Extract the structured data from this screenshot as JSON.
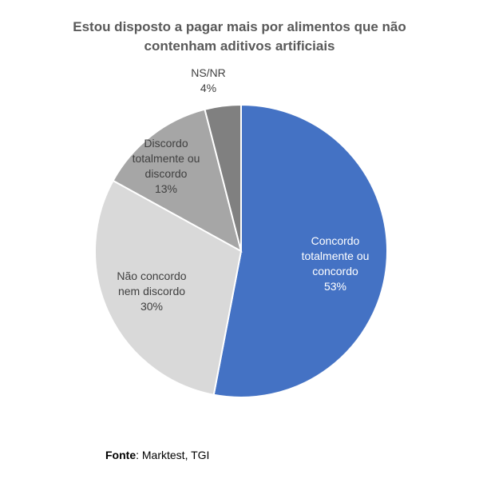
{
  "chart_data": {
    "type": "pie",
    "title_lines": [
      "Estou disposto a pagar mais por alimentos que não",
      "contenham aditivos artificiais"
    ],
    "slices": [
      {
        "label_lines": [
          "Concordo",
          "totalmente ou",
          "concordo"
        ],
        "value": 53,
        "value_label": "53%",
        "color": "#4472C4",
        "text_color": "#ffffff"
      },
      {
        "label_lines": [
          "Não concordo",
          "nem discordo"
        ],
        "value": 30,
        "value_label": "30%",
        "color": "#D9D9D9",
        "text_color": "#404040"
      },
      {
        "label_lines": [
          "Discordo",
          "totalmente ou",
          "discordo"
        ],
        "value": 13,
        "value_label": "13%",
        "color": "#A6A6A6",
        "text_color": "#404040"
      },
      {
        "label_lines": [
          "NS/NR"
        ],
        "value": 4,
        "value_label": "4%",
        "color": "#808080",
        "text_color": "#404040"
      }
    ]
  },
  "source": {
    "label": "Fonte",
    "text": ": Marktest, TGI"
  }
}
